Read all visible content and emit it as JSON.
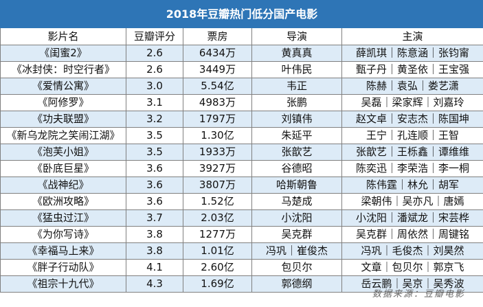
{
  "title": "2018年豆瓣热门低分国产电影",
  "headers": [
    "影片名",
    "豆瓣评分",
    "票房",
    "导演",
    "主演"
  ],
  "rows": [
    {
      "film": "《闺蜜2》",
      "score": "2.6",
      "box": "6434万",
      "director": "黄真真",
      "cast": "薛凯琪｜陈意涵｜张钧甯"
    },
    {
      "film": "《冰封侠：时空行者》",
      "score": "2.6",
      "box": "3449万",
      "director": "叶伟民",
      "cast": "甄子丹｜黄圣依｜王宝强"
    },
    {
      "film": "《爱情公寓》",
      "score": "3.0",
      "box": "5.54亿",
      "director": "韦正",
      "cast": "陈赫｜袁弘｜娄艺潇"
    },
    {
      "film": "《阿修罗》",
      "score": "3.1",
      "box": "4983万",
      "director": "张鹏",
      "cast": "吴磊｜梁家辉｜刘嘉玲"
    },
    {
      "film": "《功夫联盟》",
      "score": "3.2",
      "box": "1797万",
      "director": "刘镇伟",
      "cast": "赵文卓｜安志杰｜陈国坤"
    },
    {
      "film": "《新乌龙院之笑闹江湖》",
      "score": "3.5",
      "box": "1.30亿",
      "director": "朱延平",
      "cast": "王宁｜孔连顺｜王智"
    },
    {
      "film": "《泡芙小姐》",
      "score": "3.5",
      "box": "1933万",
      "director": "张歆艺",
      "cast": "张歆艺｜王栎鑫｜谭维维"
    },
    {
      "film": "《卧底巨星》",
      "score": "3.6",
      "box": "3927万",
      "director": "谷德昭",
      "cast": "陈奕迅｜李荣浩｜李一桐"
    },
    {
      "film": "《战神纪》",
      "score": "3.6",
      "box": "3807万",
      "director": "哈斯朝鲁",
      "cast": "陈伟霆｜林允｜胡军"
    },
    {
      "film": "《欧洲攻略》",
      "score": "3.6",
      "box": "1.52亿",
      "director": "马楚成",
      "cast": "梁朝伟｜吴亦凡｜唐嫣"
    },
    {
      "film": "《猛虫过江》",
      "score": "3.7",
      "box": "2.03亿",
      "director": "小沈阳",
      "cast": "小沈阳｜潘斌龙｜宋芸桦"
    },
    {
      "film": "《为你写诗》",
      "score": "3.8",
      "box": "1277万",
      "director": "吴克群",
      "cast": "吴克群｜周依然｜周键铭"
    },
    {
      "film": "《幸福马上来》",
      "score": "3.8",
      "box": "1.01亿",
      "director": "冯巩｜崔俊杰",
      "cast": "冯巩｜毛俊杰｜刘昊然"
    },
    {
      "film": "《胖子行动队》",
      "score": "4.1",
      "box": "2.60亿",
      "director": "包贝尔",
      "cast": "文章｜包贝尔｜郭京飞"
    },
    {
      "film": "《祖宗十九代》",
      "score": "4.3",
      "box": "1.69亿",
      "director": "郭德纲",
      "cast": "岳云鹏｜吴京｜吴秀波"
    }
  ],
  "footer": "数据来源：豆瓣电影",
  "colors": {
    "title_bg": "#2e75b6",
    "title_text": "#ffffff",
    "stripe": "#ddebf7",
    "border": "#7f7f7f"
  }
}
